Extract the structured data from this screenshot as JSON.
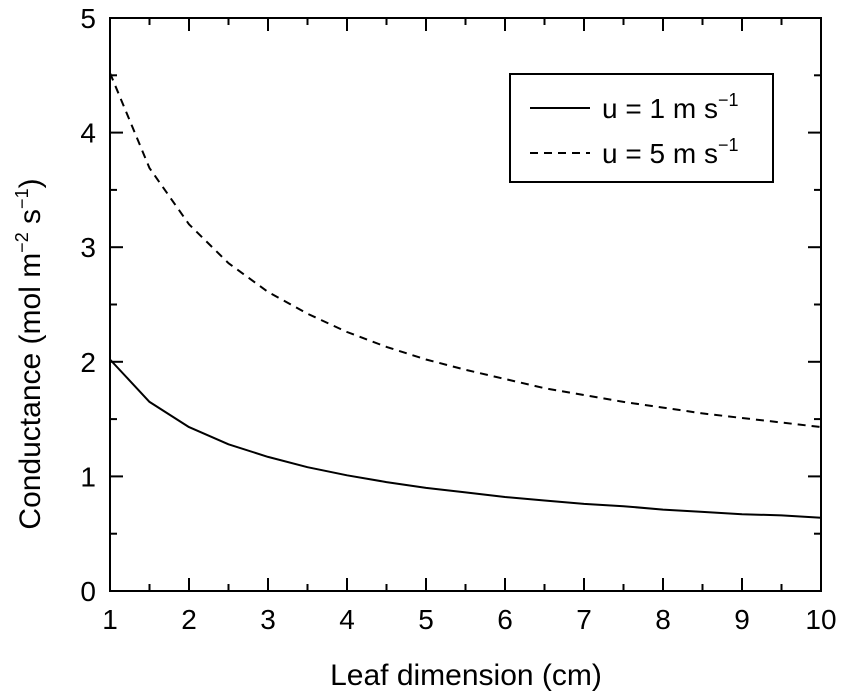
{
  "chart_data": {
    "type": "line",
    "xlabel": "Leaf dimension (cm)",
    "ylabel_parts": {
      "base": "Conductance (mol m",
      "exp1": "−2",
      "mid": " s",
      "exp2": "−1",
      "end": ")"
    },
    "xlim": [
      1,
      10
    ],
    "ylim": [
      0,
      5
    ],
    "x_ticks": [
      1,
      2,
      3,
      4,
      5,
      6,
      7,
      8,
      9,
      10
    ],
    "y_ticks": [
      0,
      1,
      2,
      3,
      4,
      5
    ],
    "grid": false,
    "legend_position": "top-right",
    "series": [
      {
        "name": "u = 1 m s−1",
        "legend_base": "u = 1 m s",
        "legend_exp": "−1",
        "style": "solid",
        "color": "#000000",
        "x": [
          1,
          1.5,
          2,
          2.5,
          3,
          3.5,
          4,
          4.5,
          5,
          5.5,
          6,
          6.5,
          7,
          7.5,
          8,
          8.5,
          9,
          9.5,
          10
        ],
        "y": [
          2.02,
          1.65,
          1.43,
          1.28,
          1.17,
          1.08,
          1.01,
          0.95,
          0.9,
          0.86,
          0.82,
          0.79,
          0.76,
          0.74,
          0.71,
          0.69,
          0.67,
          0.66,
          0.64
        ]
      },
      {
        "name": "u = 5 m s−1",
        "legend_base": "u = 5 m s",
        "legend_exp": "−1",
        "style": "dashed",
        "color": "#000000",
        "x": [
          1,
          1.5,
          2,
          2.5,
          3,
          3.5,
          4,
          4.5,
          5,
          5.5,
          6,
          6.5,
          7,
          7.5,
          8,
          8.5,
          9,
          9.5,
          10
        ],
        "y": [
          4.52,
          3.69,
          3.2,
          2.86,
          2.61,
          2.42,
          2.26,
          2.13,
          2.02,
          1.93,
          1.85,
          1.77,
          1.71,
          1.65,
          1.6,
          1.55,
          1.51,
          1.47,
          1.43
        ]
      }
    ]
  }
}
